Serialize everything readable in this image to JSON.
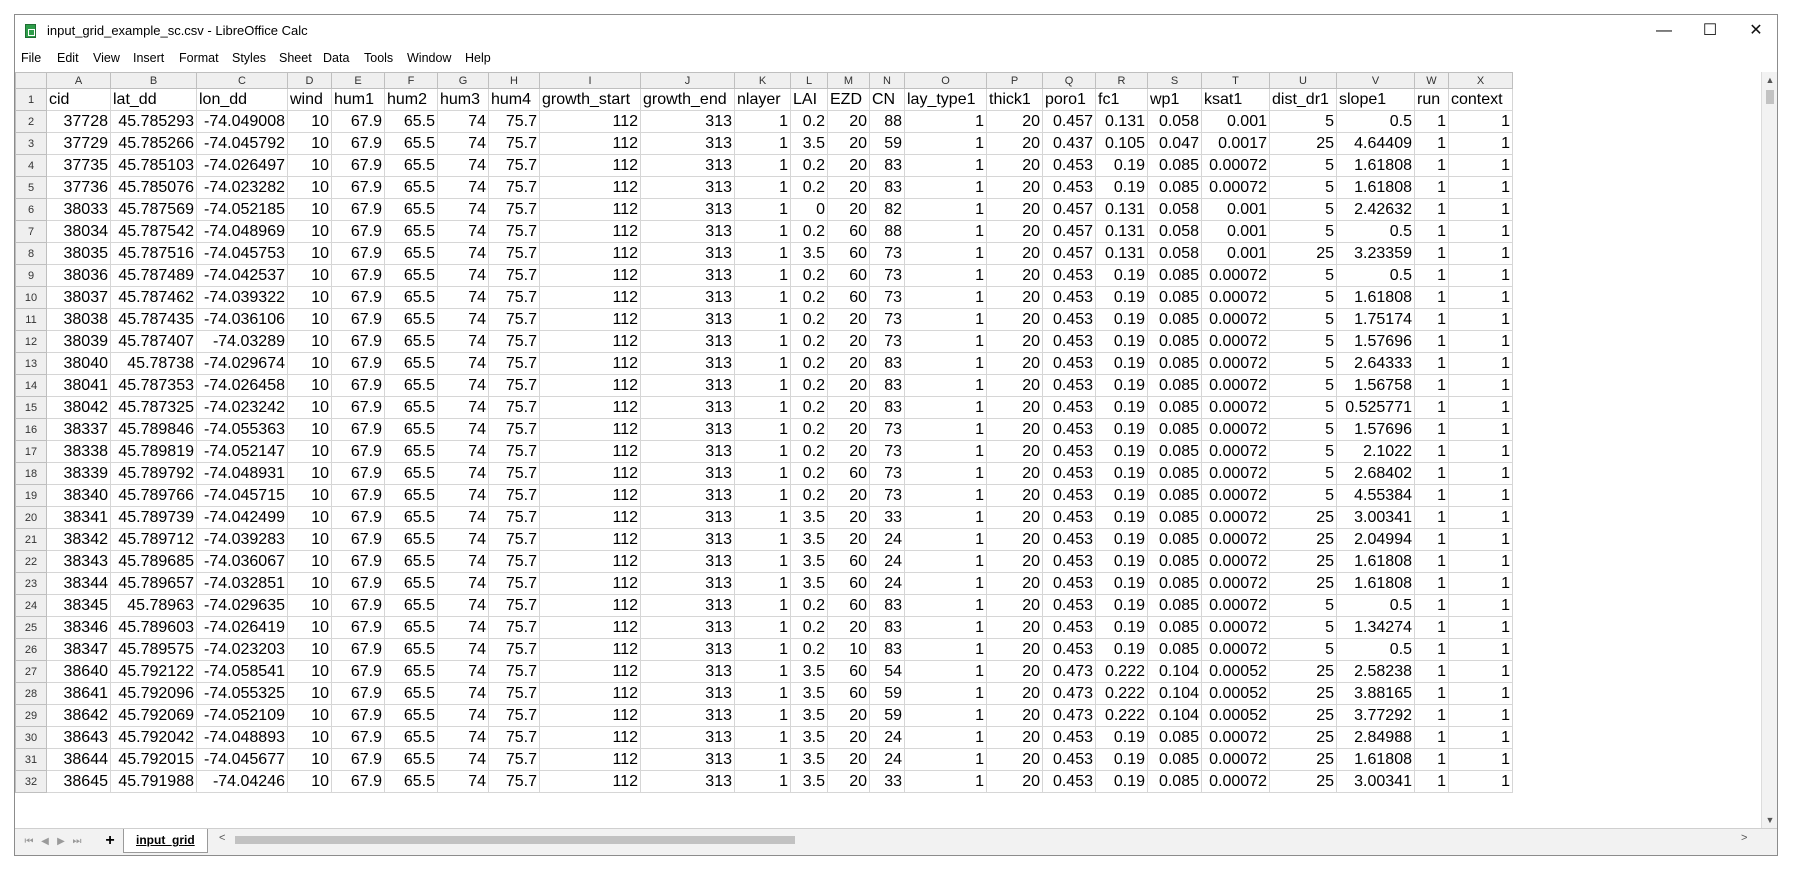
{
  "window": {
    "title": "input_grid_example_sc.csv - LibreOffice Calc",
    "minimize_icon": "minimize-icon",
    "maximize_icon": "maximize-icon",
    "close_icon": "close-icon",
    "minimize_glyph": "—",
    "maximize_glyph": "☐",
    "close_glyph": "✕"
  },
  "menu": [
    {
      "label": "File"
    },
    {
      "label": "Edit"
    },
    {
      "label": "View"
    },
    {
      "label": "Insert"
    },
    {
      "label": "Format"
    },
    {
      "label": "Styles"
    },
    {
      "label": "Sheet"
    },
    {
      "label": "Data"
    },
    {
      "label": "Tools"
    },
    {
      "label": "Window"
    },
    {
      "label": "Help"
    }
  ],
  "columns": [
    "A",
    "B",
    "C",
    "D",
    "E",
    "F",
    "G",
    "H",
    "I",
    "J",
    "K",
    "L",
    "M",
    "N",
    "O",
    "P",
    "Q",
    "R",
    "S",
    "T",
    "U",
    "V",
    "W",
    "X"
  ],
  "header_row": [
    "cid",
    "lat_dd",
    "lon_dd",
    "wind",
    "hum1",
    "hum2",
    "hum3",
    "hum4",
    "growth_start",
    "growth_end",
    "nlayer",
    "LAI",
    "EZD",
    "CN",
    "lay_type1",
    "thick1",
    "poro1",
    "fc1",
    "wp1",
    "ksat1",
    "dist_dr1",
    "slope1",
    "run",
    "context"
  ],
  "rows": [
    [
      "37728",
      "45.785293",
      "-74.049008",
      "10",
      "67.9",
      "65.5",
      "74",
      "75.7",
      "112",
      "313",
      "1",
      "0.2",
      "20",
      "88",
      "1",
      "20",
      "0.457",
      "0.131",
      "0.058",
      "0.001",
      "5",
      "0.5",
      "1",
      "1"
    ],
    [
      "37729",
      "45.785266",
      "-74.045792",
      "10",
      "67.9",
      "65.5",
      "74",
      "75.7",
      "112",
      "313",
      "1",
      "3.5",
      "20",
      "59",
      "1",
      "20",
      "0.437",
      "0.105",
      "0.047",
      "0.0017",
      "25",
      "4.64409",
      "1",
      "1"
    ],
    [
      "37735",
      "45.785103",
      "-74.026497",
      "10",
      "67.9",
      "65.5",
      "74",
      "75.7",
      "112",
      "313",
      "1",
      "0.2",
      "20",
      "83",
      "1",
      "20",
      "0.453",
      "0.19",
      "0.085",
      "0.00072",
      "5",
      "1.61808",
      "1",
      "1"
    ],
    [
      "37736",
      "45.785076",
      "-74.023282",
      "10",
      "67.9",
      "65.5",
      "74",
      "75.7",
      "112",
      "313",
      "1",
      "0.2",
      "20",
      "83",
      "1",
      "20",
      "0.453",
      "0.19",
      "0.085",
      "0.00072",
      "5",
      "1.61808",
      "1",
      "1"
    ],
    [
      "38033",
      "45.787569",
      "-74.052185",
      "10",
      "67.9",
      "65.5",
      "74",
      "75.7",
      "112",
      "313",
      "1",
      "0",
      "20",
      "82",
      "1",
      "20",
      "0.457",
      "0.131",
      "0.058",
      "0.001",
      "5",
      "2.42632",
      "1",
      "1"
    ],
    [
      "38034",
      "45.787542",
      "-74.048969",
      "10",
      "67.9",
      "65.5",
      "74",
      "75.7",
      "112",
      "313",
      "1",
      "0.2",
      "60",
      "88",
      "1",
      "20",
      "0.457",
      "0.131",
      "0.058",
      "0.001",
      "5",
      "0.5",
      "1",
      "1"
    ],
    [
      "38035",
      "45.787516",
      "-74.045753",
      "10",
      "67.9",
      "65.5",
      "74",
      "75.7",
      "112",
      "313",
      "1",
      "3.5",
      "60",
      "73",
      "1",
      "20",
      "0.457",
      "0.131",
      "0.058",
      "0.001",
      "25",
      "3.23359",
      "1",
      "1"
    ],
    [
      "38036",
      "45.787489",
      "-74.042537",
      "10",
      "67.9",
      "65.5",
      "74",
      "75.7",
      "112",
      "313",
      "1",
      "0.2",
      "60",
      "73",
      "1",
      "20",
      "0.453",
      "0.19",
      "0.085",
      "0.00072",
      "5",
      "0.5",
      "1",
      "1"
    ],
    [
      "38037",
      "45.787462",
      "-74.039322",
      "10",
      "67.9",
      "65.5",
      "74",
      "75.7",
      "112",
      "313",
      "1",
      "0.2",
      "60",
      "73",
      "1",
      "20",
      "0.453",
      "0.19",
      "0.085",
      "0.00072",
      "5",
      "1.61808",
      "1",
      "1"
    ],
    [
      "38038",
      "45.787435",
      "-74.036106",
      "10",
      "67.9",
      "65.5",
      "74",
      "75.7",
      "112",
      "313",
      "1",
      "0.2",
      "20",
      "73",
      "1",
      "20",
      "0.453",
      "0.19",
      "0.085",
      "0.00072",
      "5",
      "1.75174",
      "1",
      "1"
    ],
    [
      "38039",
      "45.787407",
      "-74.03289",
      "10",
      "67.9",
      "65.5",
      "74",
      "75.7",
      "112",
      "313",
      "1",
      "0.2",
      "20",
      "73",
      "1",
      "20",
      "0.453",
      "0.19",
      "0.085",
      "0.00072",
      "5",
      "1.57696",
      "1",
      "1"
    ],
    [
      "38040",
      "45.78738",
      "-74.029674",
      "10",
      "67.9",
      "65.5",
      "74",
      "75.7",
      "112",
      "313",
      "1",
      "0.2",
      "20",
      "83",
      "1",
      "20",
      "0.453",
      "0.19",
      "0.085",
      "0.00072",
      "5",
      "2.64333",
      "1",
      "1"
    ],
    [
      "38041",
      "45.787353",
      "-74.026458",
      "10",
      "67.9",
      "65.5",
      "74",
      "75.7",
      "112",
      "313",
      "1",
      "0.2",
      "20",
      "83",
      "1",
      "20",
      "0.453",
      "0.19",
      "0.085",
      "0.00072",
      "5",
      "1.56758",
      "1",
      "1"
    ],
    [
      "38042",
      "45.787325",
      "-74.023242",
      "10",
      "67.9",
      "65.5",
      "74",
      "75.7",
      "112",
      "313",
      "1",
      "0.2",
      "20",
      "83",
      "1",
      "20",
      "0.453",
      "0.19",
      "0.085",
      "0.00072",
      "5",
      "0.525771",
      "1",
      "1"
    ],
    [
      "38337",
      "45.789846",
      "-74.055363",
      "10",
      "67.9",
      "65.5",
      "74",
      "75.7",
      "112",
      "313",
      "1",
      "0.2",
      "20",
      "73",
      "1",
      "20",
      "0.453",
      "0.19",
      "0.085",
      "0.00072",
      "5",
      "1.57696",
      "1",
      "1"
    ],
    [
      "38338",
      "45.789819",
      "-74.052147",
      "10",
      "67.9",
      "65.5",
      "74",
      "75.7",
      "112",
      "313",
      "1",
      "0.2",
      "20",
      "73",
      "1",
      "20",
      "0.453",
      "0.19",
      "0.085",
      "0.00072",
      "5",
      "2.1022",
      "1",
      "1"
    ],
    [
      "38339",
      "45.789792",
      "-74.048931",
      "10",
      "67.9",
      "65.5",
      "74",
      "75.7",
      "112",
      "313",
      "1",
      "0.2",
      "60",
      "73",
      "1",
      "20",
      "0.453",
      "0.19",
      "0.085",
      "0.00072",
      "5",
      "2.68402",
      "1",
      "1"
    ],
    [
      "38340",
      "45.789766",
      "-74.045715",
      "10",
      "67.9",
      "65.5",
      "74",
      "75.7",
      "112",
      "313",
      "1",
      "0.2",
      "20",
      "73",
      "1",
      "20",
      "0.453",
      "0.19",
      "0.085",
      "0.00072",
      "5",
      "4.55384",
      "1",
      "1"
    ],
    [
      "38341",
      "45.789739",
      "-74.042499",
      "10",
      "67.9",
      "65.5",
      "74",
      "75.7",
      "112",
      "313",
      "1",
      "3.5",
      "20",
      "33",
      "1",
      "20",
      "0.453",
      "0.19",
      "0.085",
      "0.00072",
      "25",
      "3.00341",
      "1",
      "1"
    ],
    [
      "38342",
      "45.789712",
      "-74.039283",
      "10",
      "67.9",
      "65.5",
      "74",
      "75.7",
      "112",
      "313",
      "1",
      "3.5",
      "20",
      "24",
      "1",
      "20",
      "0.453",
      "0.19",
      "0.085",
      "0.00072",
      "25",
      "2.04994",
      "1",
      "1"
    ],
    [
      "38343",
      "45.789685",
      "-74.036067",
      "10",
      "67.9",
      "65.5",
      "74",
      "75.7",
      "112",
      "313",
      "1",
      "3.5",
      "60",
      "24",
      "1",
      "20",
      "0.453",
      "0.19",
      "0.085",
      "0.00072",
      "25",
      "1.61808",
      "1",
      "1"
    ],
    [
      "38344",
      "45.789657",
      "-74.032851",
      "10",
      "67.9",
      "65.5",
      "74",
      "75.7",
      "112",
      "313",
      "1",
      "3.5",
      "60",
      "24",
      "1",
      "20",
      "0.453",
      "0.19",
      "0.085",
      "0.00072",
      "25",
      "1.61808",
      "1",
      "1"
    ],
    [
      "38345",
      "45.78963",
      "-74.029635",
      "10",
      "67.9",
      "65.5",
      "74",
      "75.7",
      "112",
      "313",
      "1",
      "0.2",
      "60",
      "83",
      "1",
      "20",
      "0.453",
      "0.19",
      "0.085",
      "0.00072",
      "5",
      "0.5",
      "1",
      "1"
    ],
    [
      "38346",
      "45.789603",
      "-74.026419",
      "10",
      "67.9",
      "65.5",
      "74",
      "75.7",
      "112",
      "313",
      "1",
      "0.2",
      "20",
      "83",
      "1",
      "20",
      "0.453",
      "0.19",
      "0.085",
      "0.00072",
      "5",
      "1.34274",
      "1",
      "1"
    ],
    [
      "38347",
      "45.789575",
      "-74.023203",
      "10",
      "67.9",
      "65.5",
      "74",
      "75.7",
      "112",
      "313",
      "1",
      "0.2",
      "10",
      "83",
      "1",
      "20",
      "0.453",
      "0.19",
      "0.085",
      "0.00072",
      "5",
      "0.5",
      "1",
      "1"
    ],
    [
      "38640",
      "45.792122",
      "-74.058541",
      "10",
      "67.9",
      "65.5",
      "74",
      "75.7",
      "112",
      "313",
      "1",
      "3.5",
      "60",
      "54",
      "1",
      "20",
      "0.473",
      "0.222",
      "0.104",
      "0.00052",
      "25",
      "2.58238",
      "1",
      "1"
    ],
    [
      "38641",
      "45.792096",
      "-74.055325",
      "10",
      "67.9",
      "65.5",
      "74",
      "75.7",
      "112",
      "313",
      "1",
      "3.5",
      "60",
      "59",
      "1",
      "20",
      "0.473",
      "0.222",
      "0.104",
      "0.00052",
      "25",
      "3.88165",
      "1",
      "1"
    ],
    [
      "38642",
      "45.792069",
      "-74.052109",
      "10",
      "67.9",
      "65.5",
      "74",
      "75.7",
      "112",
      "313",
      "1",
      "3.5",
      "20",
      "59",
      "1",
      "20",
      "0.473",
      "0.222",
      "0.104",
      "0.00052",
      "25",
      "3.77292",
      "1",
      "1"
    ],
    [
      "38643",
      "45.792042",
      "-74.048893",
      "10",
      "67.9",
      "65.5",
      "74",
      "75.7",
      "112",
      "313",
      "1",
      "3.5",
      "20",
      "24",
      "1",
      "20",
      "0.453",
      "0.19",
      "0.085",
      "0.00072",
      "25",
      "2.84988",
      "1",
      "1"
    ],
    [
      "38644",
      "45.792015",
      "-74.045677",
      "10",
      "67.9",
      "65.5",
      "74",
      "75.7",
      "112",
      "313",
      "1",
      "3.5",
      "20",
      "24",
      "1",
      "20",
      "0.453",
      "0.19",
      "0.085",
      "0.00072",
      "25",
      "1.61808",
      "1",
      "1"
    ],
    [
      "38645",
      "45.791988",
      "-74.04246",
      "10",
      "67.9",
      "65.5",
      "74",
      "75.7",
      "112",
      "313",
      "1",
      "3.5",
      "20",
      "33",
      "1",
      "20",
      "0.453",
      "0.19",
      "0.085",
      "0.00072",
      "25",
      "3.00341",
      "1",
      "1"
    ]
  ],
  "sheet_tabs": [
    {
      "label": "input_grid"
    }
  ],
  "add_sheet_label": "+",
  "nav_arrows": [
    "⏮",
    "◀",
    "▶",
    "⏭"
  ],
  "scroll": {
    "left_glyph": "<",
    "right_glyph": ">",
    "up_glyph": "▲",
    "down_glyph": "▼"
  },
  "colors": {
    "header_bg": "#efefef",
    "grid_line": "#d6d6d6",
    "app_icon": "#2e9d4a"
  }
}
